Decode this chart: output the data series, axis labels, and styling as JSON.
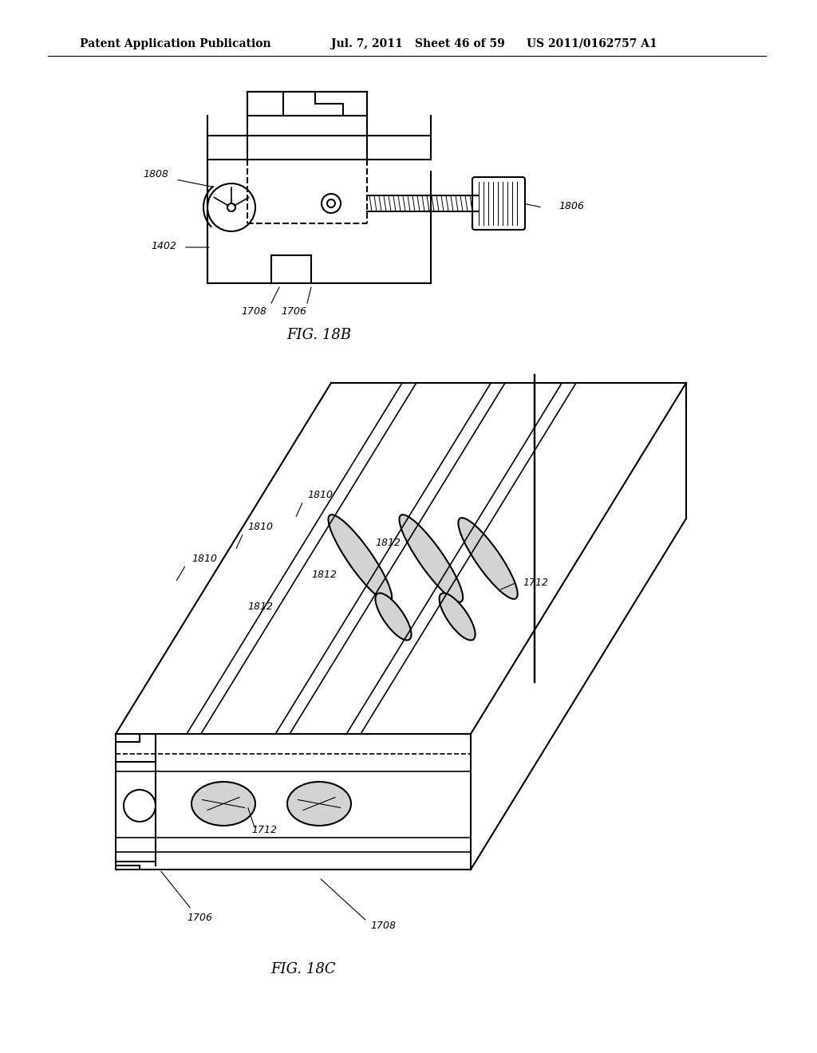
{
  "bg_color": "#ffffff",
  "header_text": "Patent Application Publication",
  "header_date": "Jul. 7, 2011",
  "header_sheet": "Sheet 46 of 59",
  "header_patent": "US 2011/0162757 A1",
  "fig18b_label": "FIG. 18B",
  "fig18c_label": "FIG. 18C",
  "line_color": "#000000",
  "line_width": 1.5,
  "dashed_color": "#555555"
}
